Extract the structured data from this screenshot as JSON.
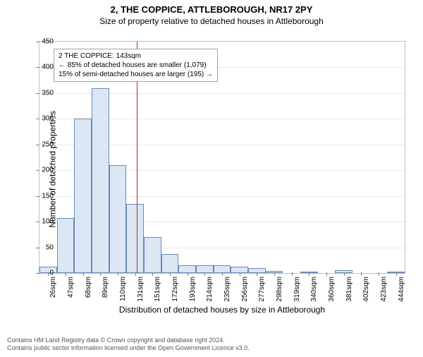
{
  "title": "2, THE COPPICE, ATTLEBOROUGH, NR17 2PY",
  "subtitle": "Size of property relative to detached houses in Attleborough",
  "chart": {
    "type": "histogram",
    "ylabel": "Number of detached properties",
    "xlabel": "Distribution of detached houses by size in Attleborough",
    "ylim": [
      0,
      450
    ],
    "ytick_step": 50,
    "background_color": "#ffffff",
    "grid_color": "#e8e8e8",
    "axis_color": "#bfbfbf",
    "bar_fill": "#dbe7f5",
    "bar_stroke": "#6a89b8",
    "bar_width_ratio": 1.0,
    "ref_line_color": "#cc2020",
    "ref_line_pos_bin_index": 5.6,
    "label_fontsize": 12,
    "tick_fontsize": 10,
    "categories": [
      "26sqm",
      "47sqm",
      "68sqm",
      "89sqm",
      "110sqm",
      "131sqm",
      "151sqm",
      "172sqm",
      "193sqm",
      "214sqm",
      "235sqm",
      "256sqm",
      "277sqm",
      "298sqm",
      "319sqm",
      "340sqm",
      "360sqm",
      "381sqm",
      "402sqm",
      "423sqm",
      "444sqm"
    ],
    "values": [
      12,
      107,
      300,
      360,
      210,
      135,
      70,
      37,
      15,
      15,
      15,
      12,
      9,
      4,
      0,
      3,
      0,
      6,
      0,
      0,
      3
    ],
    "annotation": {
      "line1": "2 THE COPPICE: 143sqm",
      "line2": "← 85% of detached houses are smaller (1,079)",
      "line3": "15% of semi-detached houses are larger (195) →",
      "border_color": "#a0a0a0"
    }
  },
  "footer": {
    "line1": "Contains HM Land Registry data © Crown copyright and database right 2024.",
    "line2": "Contains public sector information licensed under the Open Government Licence v3.0."
  }
}
